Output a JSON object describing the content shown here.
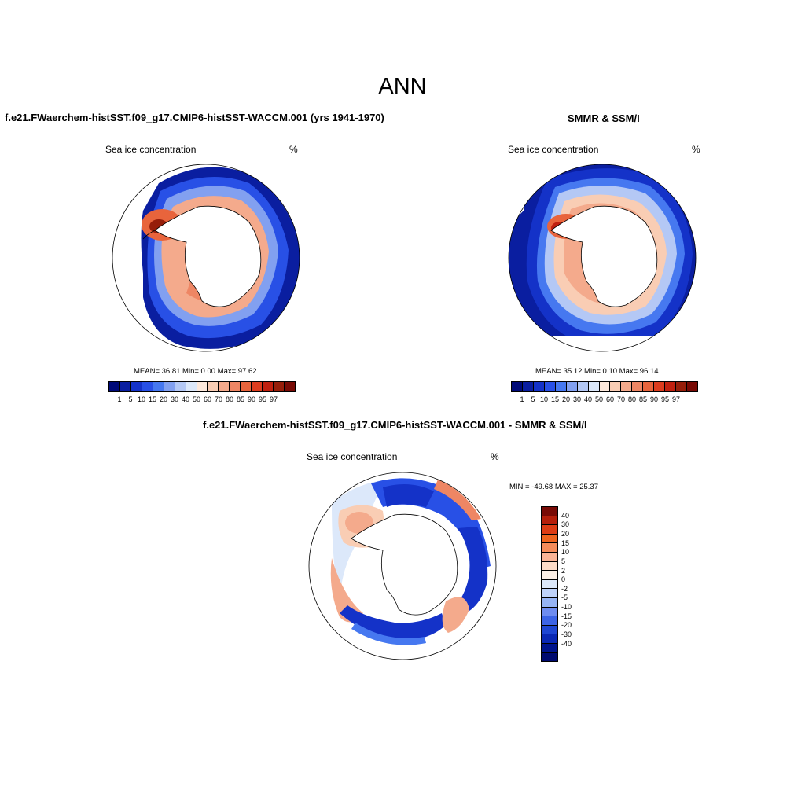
{
  "title": "ANN",
  "panels": {
    "model": {
      "title": "f.e21.FWaerchem-histSST.f09_g17.CMIP6-histSST-WACCM.001 (yrs 1941-1970)",
      "left_label": "Sea ice concentration",
      "unit": "%",
      "stats": "MEAN=  36.81  Min=   0.00  Max=  97.62"
    },
    "obs": {
      "title": "SMMR & SSM/I",
      "left_label": "Sea ice concentration",
      "unit": "%",
      "stats": "MEAN=  35.12  Min=   0.10  Max=  96.14"
    },
    "diff": {
      "title": "f.e21.FWaerchem-histSST.f09_g17.CMIP6-histSST-WACCM.001 - SMMR & SSM/I",
      "left_label": "Sea ice concentration",
      "unit": "%",
      "stats": "MIN = -49.68 MAX =  25.37"
    }
  },
  "colorbar_conc": {
    "colors": [
      "#000a78",
      "#0a1ea0",
      "#1432c8",
      "#2850e6",
      "#4678f0",
      "#82a0f0",
      "#b4c8f5",
      "#dce8fa",
      "#fde9dc",
      "#f9cdb4",
      "#f4aa8c",
      "#ee8664",
      "#e8643c",
      "#dc3c1e",
      "#c0200f",
      "#961e0a",
      "#780a05"
    ],
    "labels": [
      "1",
      "5",
      "10",
      "15",
      "20",
      "30",
      "40",
      "50",
      "60",
      "70",
      "80",
      "85",
      "90",
      "95",
      "97"
    ]
  },
  "colorbar_diff": {
    "colors": [
      "#780a05",
      "#b41e0a",
      "#dc3c14",
      "#ee641e",
      "#f48c5a",
      "#f9b496",
      "#fddcc8",
      "#fdf0e6",
      "#dce8fa",
      "#bed2fa",
      "#96b4f5",
      "#6e8cf0",
      "#3c64e6",
      "#1e46d2",
      "#0a28b4",
      "#00148c",
      "#000a6e"
    ],
    "labels": [
      "40",
      "30",
      "20",
      "15",
      "10",
      "5",
      "2",
      "0",
      "-2",
      "-5",
      "-10",
      "-15",
      "-20",
      "-30",
      "-40"
    ]
  }
}
